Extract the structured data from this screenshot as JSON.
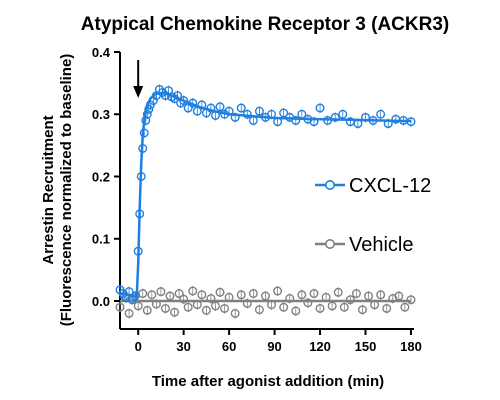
{
  "chart_data": {
    "type": "scatter",
    "title": "Atypical Chemokine Receptor 3 (ACKR3)",
    "xlabel": "Time after agonist addition (min)",
    "ylabel_line1": "Arrestin Recruitment",
    "ylabel_line2": "(Fluorescence normalized to baseline)",
    "xlim": [
      -12,
      182
    ],
    "ylim": [
      -0.045,
      0.4
    ],
    "x_ticks": [
      0,
      30,
      60,
      90,
      120,
      150,
      180
    ],
    "x_tick_labels": [
      "0",
      "30",
      "60",
      "90",
      "120",
      "150",
      "180"
    ],
    "y_ticks": [
      0.0,
      0.1,
      0.2,
      0.3,
      0.4
    ],
    "y_tick_labels": [
      "0.0",
      "0.1",
      "0.2",
      "0.3",
      "0.4"
    ],
    "agonist_addition_arrow_x": 0,
    "legend_position": "right",
    "series": [
      {
        "name": "CXCL-12",
        "color": "#1f7fe0",
        "fit_x": [
          -12,
          -6,
          -1,
          0,
          1,
          2,
          3,
          4,
          5,
          6,
          8,
          10,
          12,
          15,
          18,
          22,
          30,
          40,
          50,
          60,
          75,
          90,
          105,
          120,
          140,
          160,
          180
        ],
        "fit_y": [
          0.012,
          0.01,
          0.006,
          0.06,
          0.15,
          0.22,
          0.265,
          0.29,
          0.305,
          0.315,
          0.325,
          0.33,
          0.333,
          0.334,
          0.333,
          0.33,
          0.322,
          0.312,
          0.305,
          0.3,
          0.297,
          0.294,
          0.293,
          0.292,
          0.291,
          0.29,
          0.289
        ],
        "points_x": [
          -12,
          -10,
          -8,
          -6,
          -4,
          -2,
          0,
          1,
          2,
          3,
          4,
          5,
          6,
          7,
          8,
          10,
          12,
          14,
          16,
          18,
          20,
          22,
          24,
          26,
          28,
          30,
          33,
          36,
          39,
          42,
          45,
          48,
          51,
          54,
          57,
          60,
          64,
          68,
          72,
          76,
          80,
          84,
          88,
          92,
          96,
          100,
          104,
          108,
          112,
          116,
          120,
          125,
          130,
          135,
          140,
          145,
          150,
          155,
          160,
          165,
          170,
          175,
          180
        ],
        "points_y": [
          0.018,
          0.012,
          0.005,
          0.015,
          0.002,
          0.008,
          0.08,
          0.14,
          0.2,
          0.245,
          0.27,
          0.29,
          0.3,
          0.308,
          0.315,
          0.322,
          0.33,
          0.34,
          0.335,
          0.33,
          0.338,
          0.328,
          0.325,
          0.33,
          0.318,
          0.322,
          0.31,
          0.318,
          0.305,
          0.315,
          0.302,
          0.31,
          0.298,
          0.312,
          0.3,
          0.305,
          0.295,
          0.31,
          0.3,
          0.29,
          0.305,
          0.295,
          0.3,
          0.288,
          0.302,
          0.295,
          0.29,
          0.3,
          0.292,
          0.288,
          0.31,
          0.29,
          0.295,
          0.3,
          0.288,
          0.285,
          0.295,
          0.29,
          0.3,
          0.285,
          0.292,
          0.29,
          0.288
        ]
      },
      {
        "name": "Vehicle",
        "color": "#808080",
        "fit_x": [
          -12,
          180
        ],
        "fit_y": [
          0.0,
          0.0
        ],
        "points_x": [
          -12,
          -9,
          -6,
          -3,
          0,
          3,
          6,
          9,
          12,
          15,
          18,
          21,
          24,
          27,
          30,
          33,
          36,
          39,
          42,
          45,
          48,
          51,
          54,
          57,
          60,
          64,
          68,
          72,
          76,
          80,
          84,
          88,
          92,
          96,
          100,
          104,
          108,
          112,
          116,
          120,
          124,
          128,
          132,
          136,
          140,
          144,
          148,
          152,
          156,
          160,
          164,
          168,
          172,
          176,
          180
        ],
        "points_y": [
          -0.01,
          0.008,
          -0.02,
          0.005,
          -0.008,
          0.012,
          -0.015,
          0.01,
          -0.005,
          0.015,
          -0.012,
          0.008,
          -0.018,
          0.012,
          0.003,
          -0.01,
          0.016,
          -0.006,
          0.01,
          -0.015,
          0.004,
          -0.008,
          0.014,
          -0.012,
          0.006,
          -0.02,
          0.01,
          -0.004,
          0.012,
          -0.014,
          0.008,
          -0.006,
          0.016,
          -0.01,
          0.004,
          -0.016,
          0.01,
          -0.003,
          0.012,
          -0.012,
          0.006,
          -0.008,
          0.014,
          -0.01,
          0.002,
          0.012,
          -0.014,
          0.008,
          -0.006,
          0.01,
          -0.012,
          0.004,
          0.008,
          -0.01,
          0.002
        ]
      }
    ]
  }
}
